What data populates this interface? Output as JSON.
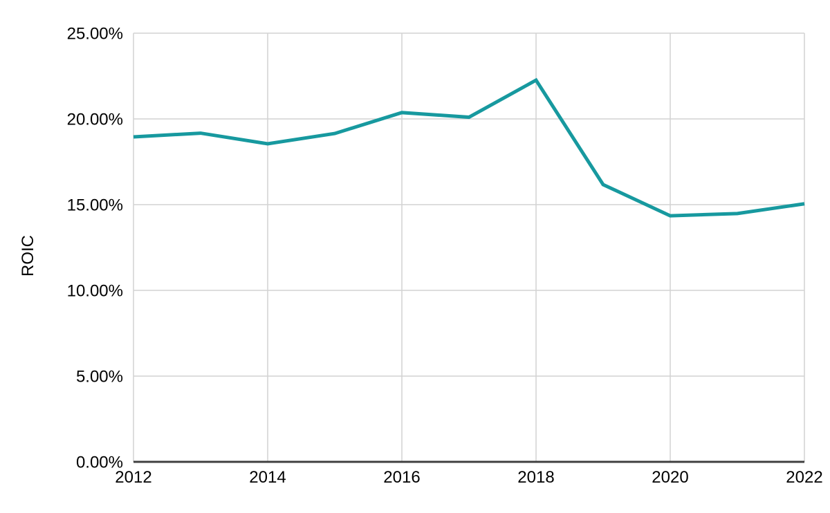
{
  "chart_data": {
    "type": "line",
    "title": "",
    "xlabel": "",
    "ylabel": "ROIC",
    "x": [
      2012,
      2013,
      2014,
      2015,
      2016,
      2017,
      2018,
      2019,
      2020,
      2021,
      2022
    ],
    "series": [
      {
        "name": "ROIC",
        "values": [
          18.95,
          19.17,
          18.55,
          19.15,
          20.37,
          20.1,
          22.26,
          16.17,
          14.35,
          14.48,
          15.05
        ]
      }
    ],
    "ylim": [
      0,
      25
    ],
    "xlim": [
      2012,
      2022
    ],
    "yticks": [
      {
        "value": 0,
        "label": "0.00%"
      },
      {
        "value": 5,
        "label": "5.00%"
      },
      {
        "value": 10,
        "label": "10.00%"
      },
      {
        "value": 15,
        "label": "15.00%"
      },
      {
        "value": 20,
        "label": "20.00%"
      },
      {
        "value": 25,
        "label": "25.00%"
      }
    ],
    "xticks": [
      {
        "value": 2012,
        "label": "2012"
      },
      {
        "value": 2014,
        "label": "2014"
      },
      {
        "value": 2016,
        "label": "2016"
      },
      {
        "value": 2018,
        "label": "2018"
      },
      {
        "value": 2020,
        "label": "2020"
      },
      {
        "value": 2022,
        "label": "2022"
      }
    ],
    "grid": true,
    "legend": "none",
    "colors": {
      "line": "#17999F",
      "grid": "#d2d2d2",
      "axis": "#3f3f3f",
      "text": "#000000",
      "background": "#ffffff"
    }
  }
}
